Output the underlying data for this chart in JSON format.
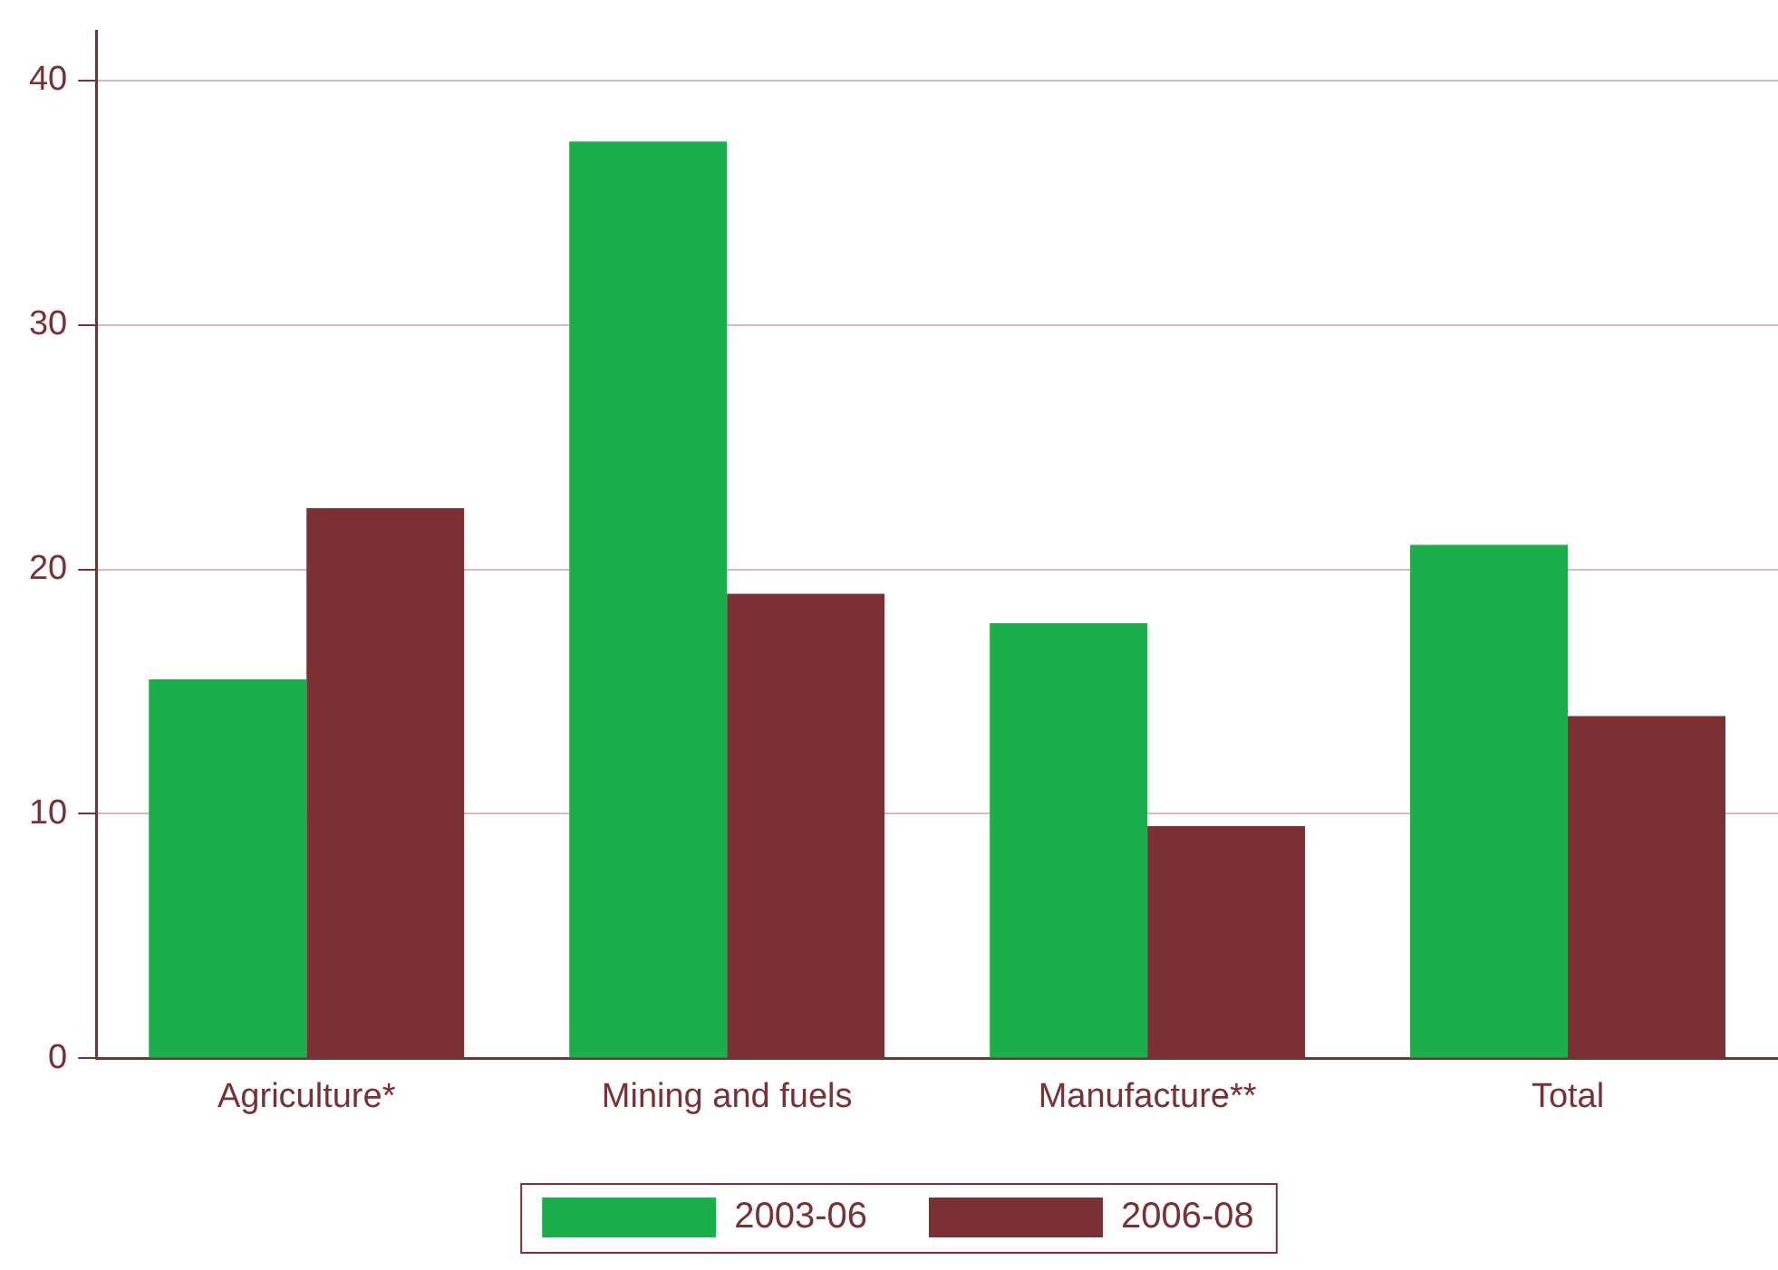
{
  "chart_data": {
    "type": "bar",
    "categories": [
      "Agriculture*",
      "Mining and fuels",
      "Manufacture**",
      "Total"
    ],
    "series": [
      {
        "name": "2003-06",
        "color": "#1aaf4a",
        "values": [
          15.5,
          37.5,
          17.8,
          21.0
        ]
      },
      {
        "name": "2006-08",
        "color": "#7b3034",
        "values": [
          22.5,
          19.0,
          9.5,
          14.0
        ]
      }
    ],
    "ylim": [
      0,
      42
    ],
    "yticks": [
      0,
      10,
      20,
      30,
      40
    ],
    "grid": "y",
    "legend": "bottom"
  }
}
